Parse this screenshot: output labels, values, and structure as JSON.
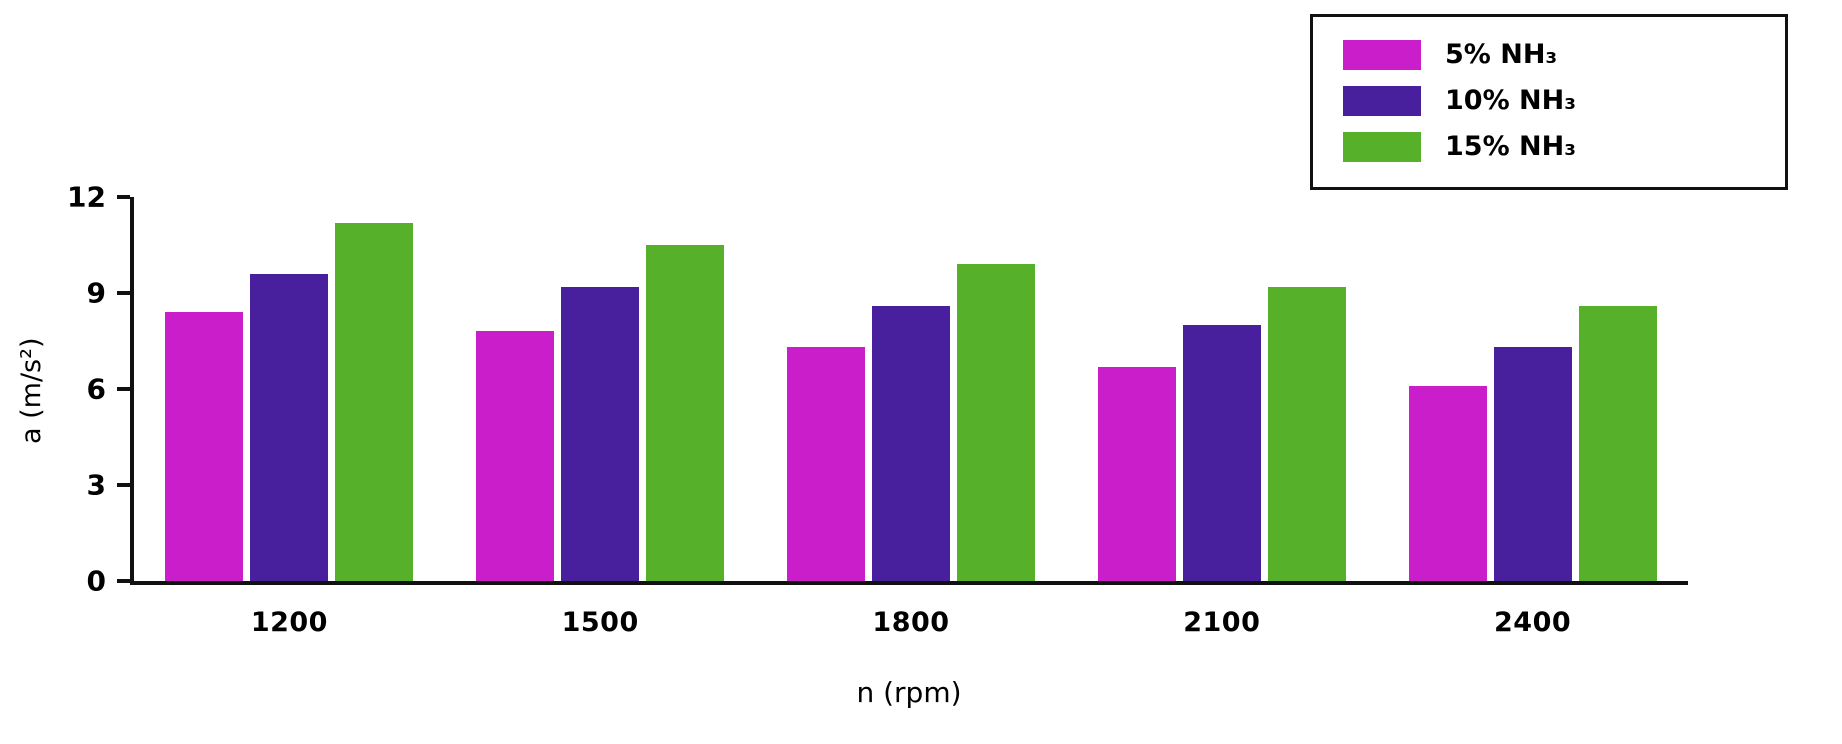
{
  "chart_data": {
    "type": "bar",
    "title": "",
    "xlabel": "n (rpm)",
    "ylabel": "a (m/s²)",
    "categories": [
      "1200",
      "1500",
      "1800",
      "2100",
      "2400"
    ],
    "series": [
      {
        "name": "5% NH₃",
        "color": "#C91EC9",
        "values": [
          8.4,
          7.8,
          7.3,
          6.7,
          6.1
        ]
      },
      {
        "name": "10% NH₃",
        "color": "#481F9D",
        "values": [
          9.6,
          9.2,
          8.6,
          8.0,
          7.3
        ]
      },
      {
        "name": "15% NH₃",
        "color": "#56B02A",
        "values": [
          11.2,
          10.5,
          9.9,
          9.2,
          8.6
        ]
      }
    ],
    "ylim": [
      0,
      12
    ],
    "y_ticks": [
      0,
      3,
      6,
      9,
      12
    ],
    "grid": false,
    "legend_position": "top-right"
  },
  "colors": {
    "axis": "#111111",
    "background": "#FFFFFF",
    "text": "#000000"
  }
}
